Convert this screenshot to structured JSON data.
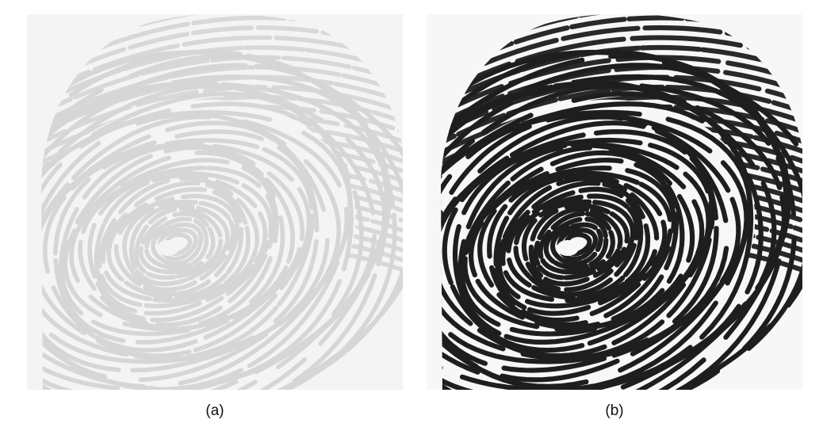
{
  "figure": {
    "panels": [
      {
        "caption": "(a)",
        "image": "fingerprint-low-contrast",
        "ridge_color": "#d6d6d6",
        "background_color": "#f4f4f4"
      },
      {
        "caption": "(b)",
        "image": "fingerprint-enhanced",
        "ridge_color": "#1e1e1e",
        "background_color": "#f7f7f7"
      }
    ]
  }
}
